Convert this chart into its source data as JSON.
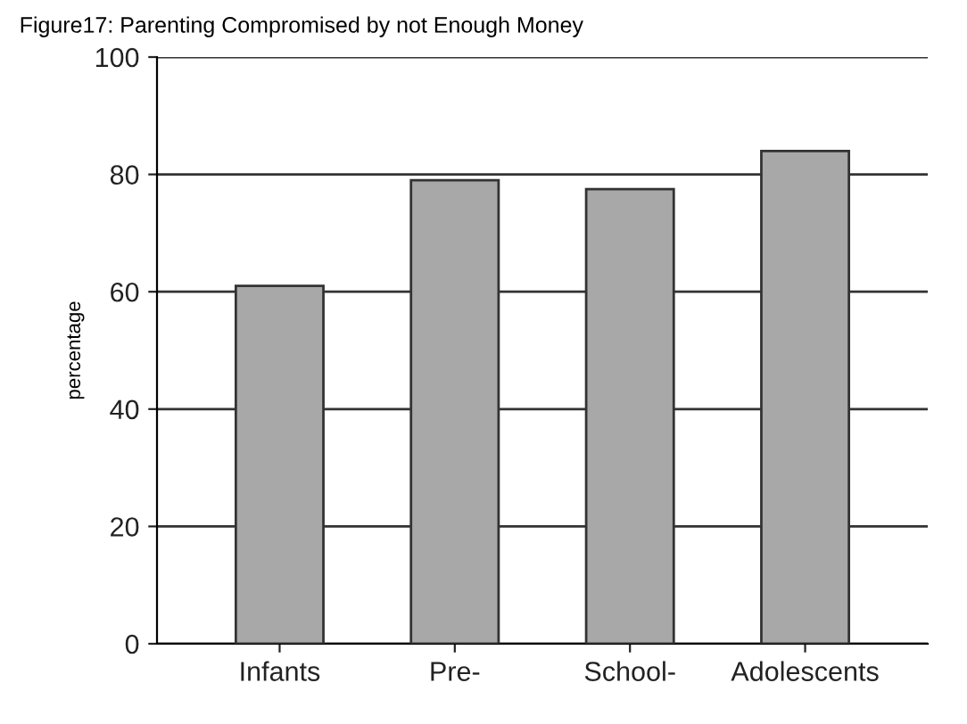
{
  "chart_data": {
    "type": "bar",
    "title": "Figure17: Parenting Compromised by not Enough Money",
    "ylabel": "percentage",
    "categories": [
      "Infants",
      "Pre-",
      "School-",
      "Adolescents"
    ],
    "values": [
      61,
      79,
      77.5,
      84
    ],
    "color": "#a8a8a8",
    "ylim": [
      0,
      100
    ],
    "yticks": [
      0,
      20,
      40,
      60,
      80,
      100
    ],
    "grid": "y"
  }
}
